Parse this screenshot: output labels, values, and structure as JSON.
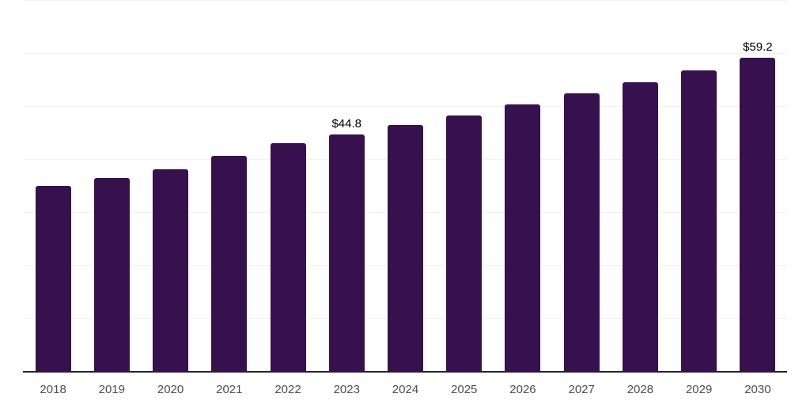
{
  "chart_data": {
    "type": "bar",
    "title": "",
    "xlabel": "",
    "ylabel": "",
    "categories": [
      "2018",
      "2019",
      "2020",
      "2021",
      "2022",
      "2023",
      "2024",
      "2025",
      "2026",
      "2027",
      "2028",
      "2029",
      "2030"
    ],
    "values": [
      35.1,
      36.6,
      38.2,
      40.7,
      43.1,
      44.8,
      46.5,
      48.4,
      50.4,
      52.5,
      54.6,
      56.9,
      59.2
    ],
    "data_labels": [
      {
        "category": "2023",
        "text": "$44.8"
      },
      {
        "category": "2030",
        "text": "$59.2"
      }
    ],
    "ylim": [
      0,
      70
    ],
    "gridline_step": 10,
    "grid": "horizontal",
    "legend": "none",
    "colors": {
      "bar": "#36114E",
      "gridline": "#f2f0f3",
      "axis_line": "#242424",
      "tick_label": "#4d4d4d",
      "data_label": "#000000",
      "background": "#ffffff"
    }
  }
}
